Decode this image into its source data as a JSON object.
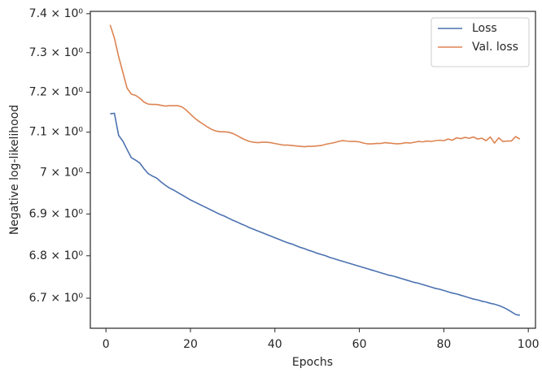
{
  "chart_data": {
    "type": "line",
    "xlabel": "Epochs",
    "ylabel": "Negative log-likelihood",
    "x": [
      1,
      2,
      3,
      4,
      5,
      6,
      7,
      8,
      9,
      10,
      11,
      12,
      13,
      14,
      15,
      16,
      17,
      18,
      19,
      20,
      21,
      22,
      23,
      24,
      25,
      26,
      27,
      28,
      29,
      30,
      31,
      32,
      33,
      34,
      35,
      36,
      37,
      38,
      39,
      40,
      41,
      42,
      43,
      44,
      45,
      46,
      47,
      48,
      49,
      50,
      51,
      52,
      53,
      54,
      55,
      56,
      57,
      58,
      59,
      60,
      61,
      62,
      63,
      64,
      65,
      66,
      67,
      68,
      69,
      70,
      71,
      72,
      73,
      74,
      75,
      76,
      77,
      78,
      79,
      80,
      81,
      82,
      83,
      84,
      85,
      86,
      87,
      88,
      89,
      90,
      91,
      92,
      93,
      94,
      95,
      96,
      97,
      98
    ],
    "series": [
      {
        "name": "Loss",
        "color": "#4c72b0",
        "values": [
          7.146,
          7.147,
          7.092,
          7.078,
          7.057,
          7.037,
          7.031,
          7.024,
          7.01,
          6.998,
          6.992,
          6.987,
          6.978,
          6.97,
          6.963,
          6.958,
          6.952,
          6.946,
          6.94,
          6.934,
          6.929,
          6.924,
          6.919,
          6.914,
          6.909,
          6.904,
          6.899,
          6.895,
          6.89,
          6.885,
          6.881,
          6.876,
          6.872,
          6.867,
          6.863,
          6.859,
          6.855,
          6.851,
          6.847,
          6.843,
          6.839,
          6.835,
          6.831,
          6.828,
          6.824,
          6.82,
          6.817,
          6.813,
          6.81,
          6.806,
          6.803,
          6.8,
          6.796,
          6.793,
          6.79,
          6.787,
          6.784,
          6.781,
          6.778,
          6.775,
          6.772,
          6.769,
          6.766,
          6.763,
          6.76,
          6.757,
          6.754,
          6.752,
          6.749,
          6.746,
          6.743,
          6.74,
          6.737,
          6.735,
          6.732,
          6.729,
          6.726,
          6.723,
          6.721,
          6.718,
          6.715,
          6.712,
          6.71,
          6.707,
          6.704,
          6.701,
          6.698,
          6.696,
          6.693,
          6.691,
          6.688,
          6.686,
          6.683,
          6.679,
          6.674,
          6.668,
          6.662,
          6.66
        ]
      },
      {
        "name": "Val. loss",
        "color": "#dd8452",
        "values": [
          7.371,
          7.337,
          7.29,
          7.25,
          7.21,
          7.195,
          7.192,
          7.185,
          7.175,
          7.17,
          7.169,
          7.169,
          7.167,
          7.165,
          7.166,
          7.166,
          7.166,
          7.163,
          7.155,
          7.145,
          7.135,
          7.127,
          7.12,
          7.113,
          7.107,
          7.103,
          7.101,
          7.101,
          7.1,
          7.097,
          7.092,
          7.086,
          7.081,
          7.077,
          7.075,
          7.074,
          7.075,
          7.075,
          7.074,
          7.072,
          7.07,
          7.068,
          7.068,
          7.067,
          7.066,
          7.065,
          7.064,
          7.065,
          7.065,
          7.066,
          7.067,
          7.07,
          7.072,
          7.074,
          7.077,
          7.079,
          7.078,
          7.077,
          7.077,
          7.076,
          7.073,
          7.071,
          7.071,
          7.072,
          7.072,
          7.074,
          7.073,
          7.072,
          7.071,
          7.072,
          7.074,
          7.073,
          7.075,
          7.077,
          7.076,
          7.078,
          7.077,
          7.079,
          7.08,
          7.079,
          7.083,
          7.08,
          7.086,
          7.084,
          7.087,
          7.085,
          7.088,
          7.083,
          7.085,
          7.079,
          7.088,
          7.073,
          7.086,
          7.077,
          7.078,
          7.078,
          7.089,
          7.083
        ]
      }
    ],
    "xlim": [
      -3.7,
      101.7
    ],
    "xticks": [
      0,
      20,
      40,
      60,
      80,
      100
    ],
    "ylim": [
      6.63,
      7.406
    ],
    "yscale": "log",
    "yticks": [
      {
        "value": 6.7,
        "label": "6.7 × 10⁰"
      },
      {
        "value": 6.8,
        "label": "6.8 × 10⁰"
      },
      {
        "value": 6.9,
        "label": "6.9 × 10⁰"
      },
      {
        "value": 7,
        "label": "7 × 10⁰"
      },
      {
        "value": 7.1,
        "label": "7.1 × 10⁰"
      },
      {
        "value": 7.2,
        "label": "7.2 × 10⁰"
      },
      {
        "value": 7.3,
        "label": "7.3 × 10⁰"
      },
      {
        "value": 7.4,
        "label": "7.4 × 10⁰"
      }
    ],
    "legend": "upper right"
  }
}
